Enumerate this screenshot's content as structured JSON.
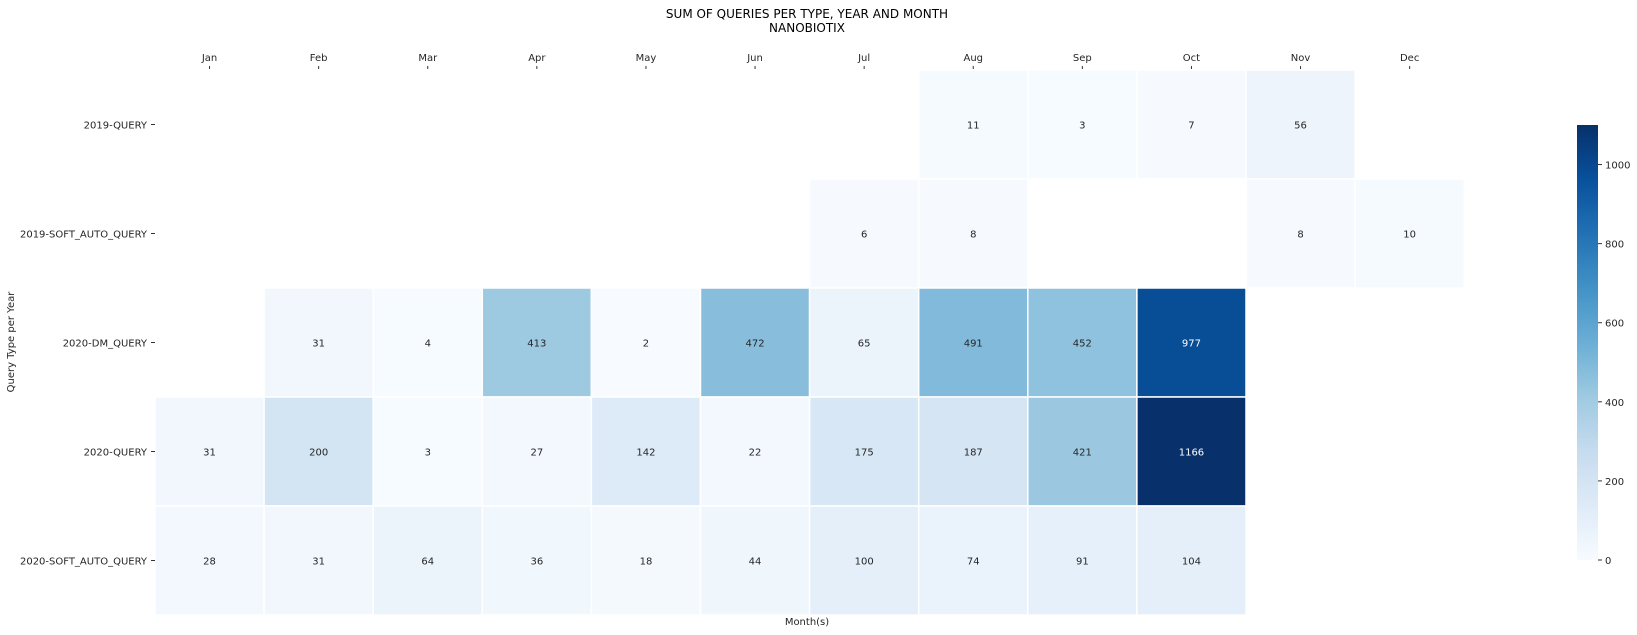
{
  "chart_data": {
    "type": "heatmap",
    "title": "SUM OF QUERIES PER TYPE, YEAR AND MONTH",
    "subtitle": "NANOBIOTIX",
    "xlabel": "Month(s)",
    "ylabel": "Query Type per Year",
    "x_categories": [
      "Jan",
      "Feb",
      "Mar",
      "Apr",
      "May",
      "Jun",
      "Jul",
      "Aug",
      "Sep",
      "Oct",
      "Nov",
      "Dec"
    ],
    "y_categories": [
      "2019-QUERY",
      "2019-SOFT_AUTO_QUERY",
      "2020-DM_QUERY",
      "2020-QUERY",
      "2020-SOFT_AUTO_QUERY"
    ],
    "values": [
      [
        null,
        null,
        null,
        null,
        null,
        null,
        null,
        11,
        3,
        7,
        56,
        null
      ],
      [
        null,
        null,
        null,
        null,
        null,
        null,
        6,
        8,
        null,
        null,
        8,
        10
      ],
      [
        null,
        31,
        4,
        413,
        2,
        472,
        65,
        491,
        452,
        977,
        null,
        null
      ],
      [
        31,
        200,
        3,
        27,
        142,
        22,
        175,
        187,
        421,
        1166,
        null,
        null
      ],
      [
        28,
        31,
        64,
        36,
        18,
        44,
        100,
        74,
        91,
        104,
        null,
        null
      ]
    ],
    "colormap": "Blues",
    "colorbar": {
      "min": 0,
      "max": 1100,
      "ticks": [
        0,
        200,
        400,
        600,
        800,
        1000
      ]
    },
    "x_axis_position": "top",
    "grid": false,
    "legend": "colorbar-right"
  }
}
